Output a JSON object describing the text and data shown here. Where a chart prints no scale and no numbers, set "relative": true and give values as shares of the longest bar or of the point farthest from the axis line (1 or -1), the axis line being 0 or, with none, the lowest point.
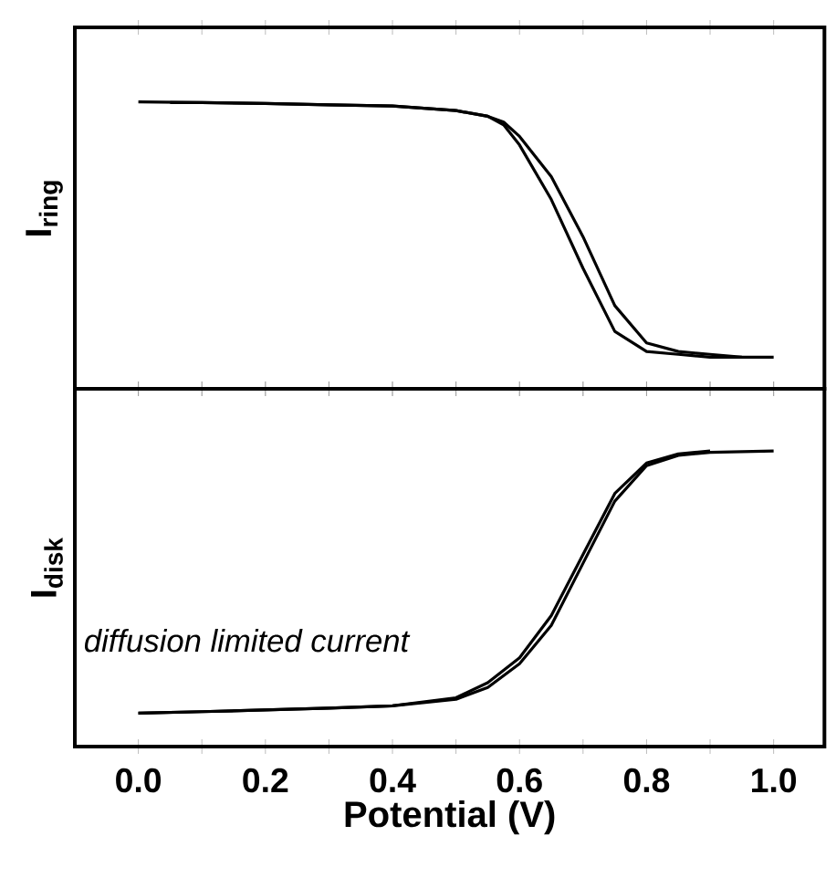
{
  "chart_data": [
    {
      "type": "line",
      "ylabel": "I$_{ring}$",
      "relative": true,
      "xlim": [
        -0.1,
        1.08
      ],
      "xticks": [
        0.0,
        {
          "value": 0.1,
          "label": null
        },
        0.2,
        {
          "value": 0.3,
          "label": null
        },
        0.4,
        {
          "value": 0.5,
          "label": null
        },
        0.6,
        {
          "value": 0.7,
          "label": null
        },
        0.8,
        {
          "value": 0.9,
          "label": null
        },
        1.0
      ],
      "tick_labels": false,
      "marker": "none",
      "line_style": "solid",
      "series": [
        {
          "color": "#000000",
          "x": [
            0.0,
            0.1,
            0.2,
            0.3,
            0.4,
            0.5,
            0.55,
            0.575,
            0.6,
            0.65,
            0.7,
            0.75,
            0.8,
            0.85,
            0.9,
            1.0
          ],
          "values": [
            1.0,
            0.998,
            0.995,
            0.99,
            0.986,
            0.97,
            0.95,
            0.92,
            0.85,
            0.66,
            0.42,
            0.2,
            0.13,
            0.12,
            0.11,
            0.11
          ]
        },
        {
          "color": "#000000",
          "x": [
            0.05,
            0.1,
            0.2,
            0.3,
            0.4,
            0.5,
            0.55,
            0.575,
            0.6,
            0.65,
            0.7,
            0.75,
            0.8,
            0.85,
            0.9,
            0.95
          ],
          "values": [
            0.998,
            0.998,
            0.995,
            0.99,
            0.986,
            0.97,
            0.95,
            0.93,
            0.88,
            0.74,
            0.53,
            0.29,
            0.16,
            0.13,
            0.12,
            0.11
          ]
        }
      ]
    },
    {
      "type": "line",
      "ylabel": "I$_{disk}$",
      "xlabel": "Potential  (V)",
      "relative": true,
      "xlim": [
        -0.1,
        1.08
      ],
      "xticks": [
        {
          "value": 0.0,
          "label": "0.0"
        },
        {
          "value": 0.1,
          "label": null
        },
        0.2,
        {
          "value": 0.3,
          "label": null
        },
        0.4,
        {
          "value": 0.5,
          "label": null
        },
        0.6,
        {
          "value": 0.7,
          "label": null
        },
        0.8,
        {
          "value": 0.9,
          "label": null
        },
        {
          "value": 1.0,
          "label": "1.0"
        }
      ],
      "tick_labels": "x",
      "marker": "none",
      "line_style": "solid",
      "annotations": [
        "diffusion limited current"
      ],
      "series": [
        {
          "color": "#000000",
          "x": [
            0.0,
            0.1,
            0.2,
            0.3,
            0.4,
            0.5,
            0.55,
            0.6,
            0.65,
            0.7,
            0.75,
            0.8,
            0.85,
            0.9
          ],
          "values": [
            0.113,
            0.118,
            0.124,
            0.13,
            0.138,
            0.165,
            0.216,
            0.3,
            0.443,
            0.65,
            0.856,
            0.959,
            0.99,
            1.0
          ]
        },
        {
          "color": "#000000",
          "x": [
            0.0,
            0.1,
            0.2,
            0.3,
            0.4,
            0.5,
            0.55,
            0.6,
            0.65,
            0.7,
            0.75,
            0.8,
            0.85,
            0.9,
            1.0
          ],
          "values": [
            0.113,
            0.118,
            0.124,
            0.13,
            0.138,
            0.16,
            0.2,
            0.28,
            0.41,
            0.62,
            0.83,
            0.95,
            0.985,
            0.995,
            1.0
          ]
        }
      ]
    }
  ]
}
